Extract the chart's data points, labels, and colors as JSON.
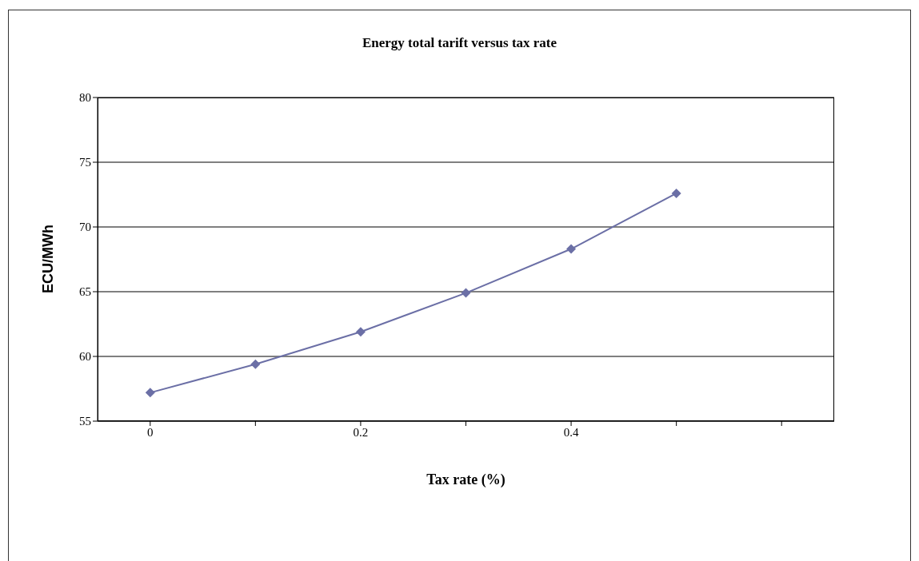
{
  "chart_data": {
    "type": "line",
    "title": "Energy total tarift versus tax rate",
    "xlabel": "Tax rate (%)",
    "ylabel": "ECU/MWh",
    "categories": [
      "0",
      null,
      "0.2",
      null,
      "0.4",
      null,
      null
    ],
    "series": [
      {
        "color": "#6b6fa6",
        "values": [
          57.2,
          59.4,
          61.9,
          64.9,
          68.3,
          72.6,
          null
        ]
      }
    ],
    "ylim": [
      55,
      80
    ],
    "yticks": [
      55,
      60,
      65,
      70,
      75,
      80
    ],
    "grid": "y",
    "marker": "diamond"
  }
}
